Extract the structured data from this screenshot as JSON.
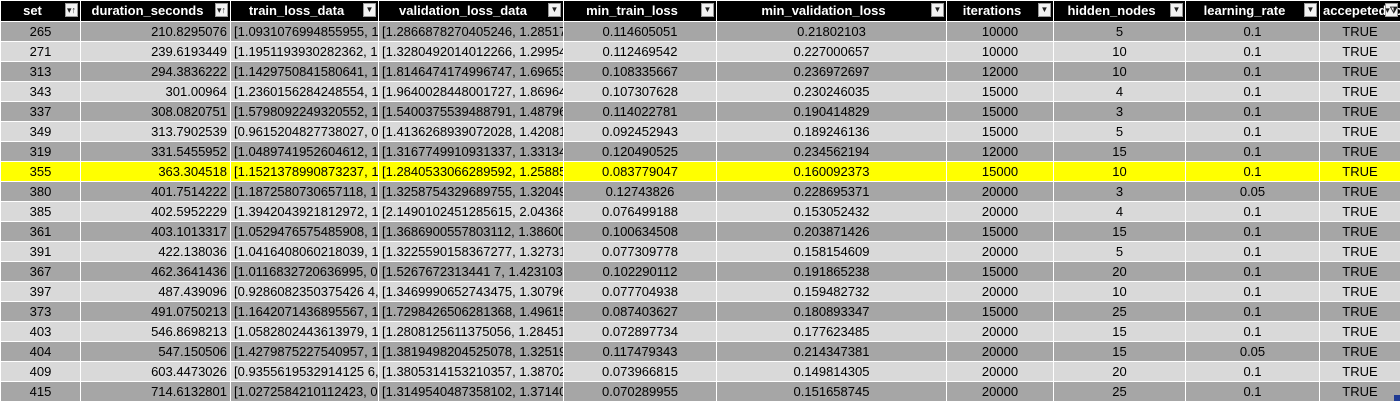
{
  "columns": [
    {
      "key": "set",
      "label": "set",
      "filter": "sort-asc"
    },
    {
      "key": "duration_seconds",
      "label": "duration_seconds",
      "filter": "sort-asc"
    },
    {
      "key": "train_loss_data",
      "label": "train_loss_data",
      "filter": "dropdown"
    },
    {
      "key": "validation_loss_data",
      "label": "validation_loss_data",
      "filter": "dropdown"
    },
    {
      "key": "min_train_loss",
      "label": "min_train_loss",
      "filter": "dropdown"
    },
    {
      "key": "min_validation_loss",
      "label": "min_validation_loss",
      "filter": "dropdown"
    },
    {
      "key": "iterations",
      "label": "iterations",
      "filter": "dropdown"
    },
    {
      "key": "hidden_nodes",
      "label": "hidden_nodes",
      "filter": "dropdown"
    },
    {
      "key": "learning_rate",
      "label": "learning_rate",
      "filter": "dropdown"
    },
    {
      "key": "accepeted_loss",
      "label": "accepeted-loss",
      "filter": "filtered"
    }
  ],
  "rows": [
    [
      "265",
      "210.8295076",
      "[1.0931076994855955, 1.",
      "[1.2866878270405246, 1.28517",
      "0.114605051",
      "0.21802103",
      "10000",
      "5",
      "0.1",
      "TRUE"
    ],
    [
      "271",
      "239.6193449",
      "[1.1951193930282362, 1.",
      "[1.3280492014012266, 1.29954",
      "0.112469542",
      "0.227000657",
      "10000",
      "10",
      "0.1",
      "TRUE"
    ],
    [
      "313",
      "294.3836222",
      "[1.1429750841580641, 1.",
      "[1.8146474174996747, 1.69653",
      "0.108335667",
      "0.236972697",
      "12000",
      "10",
      "0.1",
      "TRUE"
    ],
    [
      "343",
      "301.00964",
      "[1.2360156284248554, 1.",
      "[1.9640028448001727, 1.86964",
      "0.107307628",
      "0.230246035",
      "15000",
      "4",
      "0.1",
      "TRUE"
    ],
    [
      "337",
      "308.0820751",
      "[1.5798092249320552, 1.",
      "[1.5400375539488791, 1.48796",
      "0.114022781",
      "0.190414829",
      "15000",
      "3",
      "0.1",
      "TRUE"
    ],
    [
      "349",
      "313.7902539",
      "[0.9615204827738027, 0",
      "[1.4136268939072028, 1.42081",
      "0.092452943",
      "0.189246136",
      "15000",
      "5",
      "0.1",
      "TRUE"
    ],
    [
      "319",
      "331.5455952",
      "[1.0489741952604612, 1.",
      "[1.3167749910931337, 1.33134",
      "0.120490525",
      "0.234562194",
      "12000",
      "15",
      "0.1",
      "TRUE"
    ],
    [
      "355",
      "363.304518",
      "[1.1521378990873237, 1.",
      "[1.2840533066289592, 1.25885",
      "0.083779047",
      "0.160092373",
      "15000",
      "10",
      "0.1",
      "TRUE"
    ],
    [
      "380",
      "401.7514222",
      "[1.1872580730657118, 1.",
      "[1.3258754329689755, 1.32049",
      "0.12743826",
      "0.228695371",
      "20000",
      "3",
      "0.05",
      "TRUE"
    ],
    [
      "385",
      "402.5952229",
      "[1.3942043921812972, 1.",
      "[2.1490102451285615, 2.04368",
      "0.076499188",
      "0.153052432",
      "20000",
      "4",
      "0.1",
      "TRUE"
    ],
    [
      "361",
      "403.1013317",
      "[1.0529476575485908, 1.",
      "[1.3686900557803112, 1.38600",
      "0.100634508",
      "0.203871426",
      "15000",
      "15",
      "0.1",
      "TRUE"
    ],
    [
      "391",
      "422.138036",
      "[1.0416408060218039, 1.",
      "[1.3225590158367277, 1.32731",
      "0.077309778",
      "0.158154609",
      "20000",
      "5",
      "0.1",
      "TRUE"
    ],
    [
      "367",
      "462.3641436",
      "[1.0116832720636995, 0.",
      "[1.5267672313441 7, 1.4231037",
      "0.102290112",
      "0.191865238",
      "15000",
      "20",
      "0.1",
      "TRUE"
    ],
    [
      "397",
      "487.439096",
      "[0.9286082350375426 4, 0",
      "[1.3469990652743475, 1.30796",
      "0.077704938",
      "0.159482732",
      "20000",
      "10",
      "0.1",
      "TRUE"
    ],
    [
      "373",
      "491.0750213",
      "[1.1642071436895567, 1.",
      "[1.7298426506281368, 1.49615",
      "0.087403627",
      "0.180893347",
      "15000",
      "25",
      "0.1",
      "TRUE"
    ],
    [
      "403",
      "546.8698213",
      "[1.0582802443613979, 1.",
      "[1.2808125611375056, 1.28451",
      "0.072897734",
      "0.177623485",
      "20000",
      "15",
      "0.1",
      "TRUE"
    ],
    [
      "404",
      "547.150506",
      "[1.4279875227540957, 1.",
      "[1.3819498204525078, 1.32519",
      "0.117479343",
      "0.214347381",
      "20000",
      "15",
      "0.05",
      "TRUE"
    ],
    [
      "409",
      "603.4473026",
      "[0.9355619532914125 6, 0",
      "[1.3805314153210357, 1.38702",
      "0.073966815",
      "0.149814305",
      "20000",
      "20",
      "0.1",
      "TRUE"
    ],
    [
      "415",
      "714.6132801",
      "[1.0272584210112423, 0.",
      "[1.3149540487358102, 1.37140",
      "0.070289955",
      "0.151658745",
      "20000",
      "25",
      "0.1",
      "TRUE"
    ]
  ],
  "highlight_row_index": 7,
  "colors": {
    "header_bg": "#000000",
    "row_dark": "#a6a6a6",
    "row_light": "#d9d9d9",
    "highlight": "#ffff00"
  }
}
